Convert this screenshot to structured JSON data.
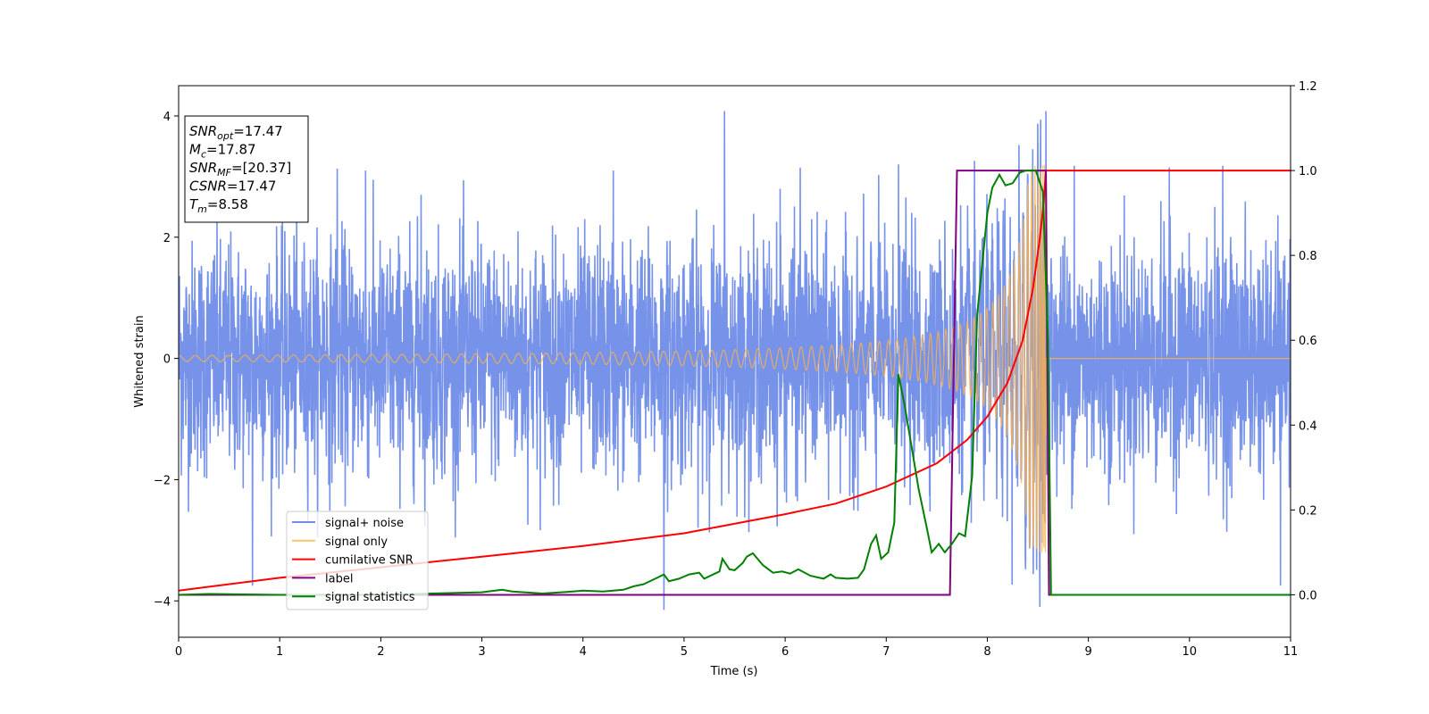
{
  "chart_data": {
    "type": "line",
    "title": "",
    "xlabel": "Time (s)",
    "ylabel": "Whitened strain",
    "y2label": "",
    "xlim": [
      0,
      11
    ],
    "ylim": [
      -4.6,
      4.5
    ],
    "y2lim": [
      -0.1,
      1.2
    ],
    "xticks": [
      0,
      1,
      2,
      3,
      4,
      5,
      6,
      7,
      8,
      9,
      10,
      11
    ],
    "yticks": [
      -4,
      -2,
      0,
      2,
      4
    ],
    "y2ticks": [
      0.0,
      0.2,
      0.4,
      0.6,
      0.8,
      1.0,
      1.2
    ],
    "grid": false,
    "legend_position": "lower-left",
    "info_box": {
      "lines": [
        {
          "var": "SNR",
          "sub": "opt",
          "text": "=17.47"
        },
        {
          "var": "M",
          "sub": "c",
          "text": "=17.87"
        },
        {
          "var": "SNR",
          "sub": "MF",
          "text": "=[20.37]"
        },
        {
          "var": "CSNR",
          "sub": "",
          "text": "=17.47"
        },
        {
          "var": "T",
          "sub": "m",
          "text": "=8.58"
        }
      ]
    },
    "series": [
      {
        "name": "signal+ noise",
        "color": "#6f8ce8",
        "axis": "left",
        "kind": "noise",
        "noise_sigma": 0.95,
        "peaks": [
          {
            "x": 0.73,
            "y": -3.75
          },
          {
            "x": 1.57,
            "y": 3.13
          },
          {
            "x": 1.85,
            "y": 3.1
          },
          {
            "x": 2.4,
            "y": 2.7
          },
          {
            "x": 4.3,
            "y": 3.1
          },
          {
            "x": 4.8,
            "y": -4.15
          },
          {
            "x": 5.4,
            "y": 4.08
          },
          {
            "x": 5.95,
            "y": 2.8
          },
          {
            "x": 6.15,
            "y": 3.15
          },
          {
            "x": 7.12,
            "y": 3.2
          },
          {
            "x": 8.45,
            "y": 3.45
          },
          {
            "x": 8.58,
            "y": 4.08
          },
          {
            "x": 8.52,
            "y": -4.1
          },
          {
            "x": 8.86,
            "y": 3.18
          },
          {
            "x": 9.8,
            "y": 3.15
          },
          {
            "x": 10.33,
            "y": 3.18
          },
          {
            "x": 10.9,
            "y": -3.75
          }
        ]
      },
      {
        "name": "signal only",
        "color": "#ffb347",
        "axis": "left",
        "kind": "chirp",
        "t_merger": 8.58,
        "amp_start": 0.05,
        "amp_peak": 3.2,
        "f_start": 6.0
      },
      {
        "name": "cumilative SNR",
        "color": "#ff0000",
        "axis": "right",
        "points": [
          [
            0,
            0.01
          ],
          [
            1,
            0.04
          ],
          [
            2,
            0.065
          ],
          [
            3,
            0.09
          ],
          [
            4,
            0.115
          ],
          [
            5,
            0.145
          ],
          [
            6,
            0.19
          ],
          [
            6.5,
            0.215
          ],
          [
            7,
            0.255
          ],
          [
            7.5,
            0.31
          ],
          [
            7.8,
            0.365
          ],
          [
            8.0,
            0.42
          ],
          [
            8.2,
            0.5
          ],
          [
            8.35,
            0.6
          ],
          [
            8.45,
            0.72
          ],
          [
            8.52,
            0.84
          ],
          [
            8.56,
            0.93
          ],
          [
            8.58,
            1.0
          ],
          [
            11,
            1.0
          ]
        ]
      },
      {
        "name": "label",
        "color": "#800080",
        "axis": "right",
        "points": [
          [
            0,
            0.0
          ],
          [
            7.63,
            0.0
          ],
          [
            7.7,
            1.0
          ],
          [
            8.58,
            1.0
          ],
          [
            8.61,
            0.0
          ],
          [
            11,
            0.0
          ]
        ]
      },
      {
        "name": "signal statistics",
        "color": "#008000",
        "axis": "right",
        "points": [
          [
            0,
            0.0
          ],
          [
            0.3,
            0.002
          ],
          [
            1,
            0.0
          ],
          [
            2,
            0.0
          ],
          [
            2.5,
            0.003
          ],
          [
            3,
            0.006
          ],
          [
            3.2,
            0.012
          ],
          [
            3.3,
            0.008
          ],
          [
            3.6,
            0.003
          ],
          [
            3.9,
            0.008
          ],
          [
            4,
            0.01
          ],
          [
            4.2,
            0.008
          ],
          [
            4.4,
            0.012
          ],
          [
            4.5,
            0.02
          ],
          [
            4.6,
            0.025
          ],
          [
            4.75,
            0.042
          ],
          [
            4.8,
            0.048
          ],
          [
            4.85,
            0.032
          ],
          [
            4.95,
            0.038
          ],
          [
            5.05,
            0.048
          ],
          [
            5.15,
            0.052
          ],
          [
            5.2,
            0.038
          ],
          [
            5.35,
            0.055
          ],
          [
            5.38,
            0.085
          ],
          [
            5.45,
            0.06
          ],
          [
            5.5,
            0.058
          ],
          [
            5.58,
            0.075
          ],
          [
            5.62,
            0.09
          ],
          [
            5.68,
            0.098
          ],
          [
            5.78,
            0.07
          ],
          [
            5.88,
            0.052
          ],
          [
            5.97,
            0.055
          ],
          [
            6.05,
            0.05
          ],
          [
            6.13,
            0.06
          ],
          [
            6.25,
            0.045
          ],
          [
            6.38,
            0.038
          ],
          [
            6.45,
            0.048
          ],
          [
            6.5,
            0.04
          ],
          [
            6.62,
            0.038
          ],
          [
            6.72,
            0.04
          ],
          [
            6.78,
            0.06
          ],
          [
            6.85,
            0.12
          ],
          [
            6.9,
            0.14
          ],
          [
            6.95,
            0.085
          ],
          [
            7.02,
            0.1
          ],
          [
            7.08,
            0.17
          ],
          [
            7.12,
            0.52
          ],
          [
            7.18,
            0.45
          ],
          [
            7.25,
            0.35
          ],
          [
            7.32,
            0.25
          ],
          [
            7.4,
            0.16
          ],
          [
            7.45,
            0.1
          ],
          [
            7.52,
            0.12
          ],
          [
            7.58,
            0.1
          ],
          [
            7.65,
            0.12
          ],
          [
            7.72,
            0.145
          ],
          [
            7.78,
            0.138
          ],
          [
            7.85,
            0.28
          ],
          [
            7.9,
            0.66
          ],
          [
            7.95,
            0.78
          ],
          [
            8.0,
            0.9
          ],
          [
            8.05,
            0.96
          ],
          [
            8.12,
            0.99
          ],
          [
            8.18,
            0.965
          ],
          [
            8.25,
            0.97
          ],
          [
            8.32,
            0.995
          ],
          [
            8.38,
            1.0
          ],
          [
            8.48,
            1.0
          ],
          [
            8.55,
            0.95
          ],
          [
            8.6,
            0.6
          ],
          [
            8.63,
            0.0
          ],
          [
            11,
            0.0
          ]
        ]
      }
    ]
  }
}
